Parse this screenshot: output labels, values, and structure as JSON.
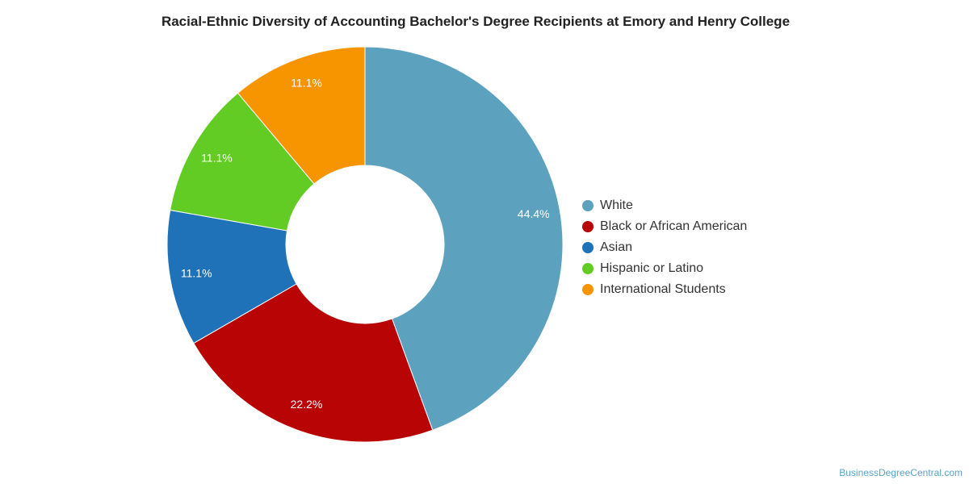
{
  "chart_data": {
    "type": "pie",
    "title": "Racial-Ethnic Diversity of Accounting Bachelor's Degree Recipients at Emory and Henry College",
    "donut": true,
    "legend_position": "right",
    "slices": [
      {
        "name": "White",
        "value": 44.4,
        "label": "44.4%",
        "color": "#5ca2be"
      },
      {
        "name": "Black or African American",
        "value": 22.2,
        "label": "22.2%",
        "color": "#b80404"
      },
      {
        "name": "Asian",
        "value": 11.1,
        "label": "11.1%",
        "color": "#1f72b8"
      },
      {
        "name": "Hispanic or Latino",
        "value": 11.1,
        "label": "11.1%",
        "color": "#63cc24"
      },
      {
        "name": "International Students",
        "value": 11.1,
        "label": "11.1%",
        "color": "#f79500"
      }
    ]
  },
  "credit": "BusinessDegreeCentral.com"
}
